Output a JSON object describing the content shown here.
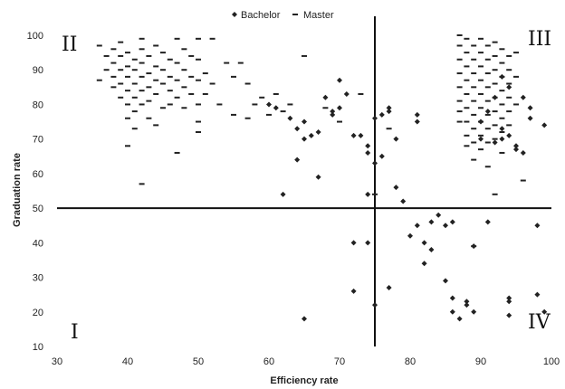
{
  "chart_data": {
    "type": "scatter",
    "title": "",
    "xlabel": "Efficiency rate",
    "ylabel": "Graduation rate",
    "xlim": [
      30,
      100
    ],
    "ylim": [
      10,
      100
    ],
    "xticks": [
      30,
      40,
      50,
      60,
      70,
      80,
      90,
      100
    ],
    "yticks": [
      10,
      20,
      30,
      40,
      50,
      60,
      70,
      80,
      90,
      100
    ],
    "grid": false,
    "legend_position": "top-center",
    "reference_lines": {
      "x": 75,
      "y": 50
    },
    "quadrant_labels": [
      {
        "label": "I",
        "quadrant": "bottom-left"
      },
      {
        "label": "II",
        "quadrant": "top-left"
      },
      {
        "label": "III",
        "quadrant": "top-right"
      },
      {
        "label": "IV",
        "quadrant": "bottom-right"
      }
    ],
    "series": [
      {
        "name": "Bachelor",
        "marker": "diamond",
        "color": "#222222",
        "points": [
          [
            60,
            80
          ],
          [
            61,
            79
          ],
          [
            62,
            54
          ],
          [
            63,
            76
          ],
          [
            64,
            73
          ],
          [
            64,
            64
          ],
          [
            65,
            75
          ],
          [
            65,
            70
          ],
          [
            66,
            71
          ],
          [
            67,
            72
          ],
          [
            67,
            59
          ],
          [
            68,
            82
          ],
          [
            69,
            78
          ],
          [
            69,
            77
          ],
          [
            70,
            87
          ],
          [
            70,
            79
          ],
          [
            71,
            83
          ],
          [
            72,
            71
          ],
          [
            73,
            71
          ],
          [
            74,
            68
          ],
          [
            74,
            66
          ],
          [
            74,
            54
          ],
          [
            75,
            76
          ],
          [
            75,
            63
          ],
          [
            76,
            77
          ],
          [
            76,
            65
          ],
          [
            77,
            79
          ],
          [
            77,
            78
          ],
          [
            78,
            70
          ],
          [
            78,
            56
          ],
          [
            79,
            52
          ],
          [
            80,
            42
          ],
          [
            81,
            45
          ],
          [
            81,
            77
          ],
          [
            81,
            75
          ],
          [
            82,
            40
          ],
          [
            83,
            46
          ],
          [
            84,
            48
          ],
          [
            82,
            34
          ],
          [
            83,
            38
          ],
          [
            85,
            45
          ],
          [
            86,
            46
          ],
          [
            85,
            29
          ],
          [
            86,
            24
          ],
          [
            86,
            20
          ],
          [
            87,
            18
          ],
          [
            88,
            23
          ],
          [
            88,
            22
          ],
          [
            89,
            20
          ],
          [
            89,
            39
          ],
          [
            90,
            70
          ],
          [
            91,
            46
          ],
          [
            92,
            69
          ],
          [
            93,
            70
          ],
          [
            94,
            24
          ],
          [
            94,
            19
          ],
          [
            94,
            23
          ],
          [
            95,
            68
          ],
          [
            95,
            67
          ],
          [
            96,
            66
          ],
          [
            96,
            82
          ],
          [
            97,
            79
          ],
          [
            97,
            76
          ],
          [
            98,
            45
          ],
          [
            98,
            25
          ],
          [
            99,
            74
          ],
          [
            99,
            20
          ],
          [
            75,
            22
          ],
          [
            72,
            40
          ],
          [
            74,
            40
          ],
          [
            72,
            26
          ],
          [
            77,
            27
          ],
          [
            65,
            18
          ],
          [
            93,
            88
          ],
          [
            94,
            85
          ],
          [
            92,
            82
          ],
          [
            91,
            78
          ],
          [
            90,
            75
          ],
          [
            93,
            73
          ],
          [
            94,
            71
          ]
        ]
      },
      {
        "name": "Master",
        "marker": "dash",
        "color": "#222222",
        "points": [
          [
            36,
            97
          ],
          [
            37,
            94
          ],
          [
            37,
            90
          ],
          [
            38,
            96
          ],
          [
            38,
            92
          ],
          [
            38,
            88
          ],
          [
            38,
            85
          ],
          [
            39,
            98
          ],
          [
            39,
            94
          ],
          [
            39,
            90
          ],
          [
            39,
            86
          ],
          [
            39,
            82
          ],
          [
            40,
            95
          ],
          [
            40,
            91
          ],
          [
            40,
            88
          ],
          [
            40,
            84
          ],
          [
            40,
            80
          ],
          [
            40,
            76
          ],
          [
            40,
            68
          ],
          [
            41,
            93
          ],
          [
            41,
            90
          ],
          [
            41,
            86
          ],
          [
            41,
            82
          ],
          [
            41,
            78
          ],
          [
            41,
            73
          ],
          [
            42,
            99
          ],
          [
            42,
            96
          ],
          [
            42,
            92
          ],
          [
            42,
            88
          ],
          [
            42,
            84
          ],
          [
            42,
            80
          ],
          [
            42,
            57
          ],
          [
            43,
            94
          ],
          [
            43,
            89
          ],
          [
            43,
            85
          ],
          [
            43,
            81
          ],
          [
            43,
            76
          ],
          [
            44,
            97
          ],
          [
            44,
            91
          ],
          [
            44,
            87
          ],
          [
            44,
            83
          ],
          [
            44,
            74
          ],
          [
            45,
            95
          ],
          [
            45,
            90
          ],
          [
            45,
            86
          ],
          [
            45,
            79
          ],
          [
            46,
            93
          ],
          [
            46,
            88
          ],
          [
            46,
            84
          ],
          [
            46,
            80
          ],
          [
            47,
            99
          ],
          [
            47,
            92
          ],
          [
            47,
            87
          ],
          [
            47,
            82
          ],
          [
            47,
            66
          ],
          [
            48,
            96
          ],
          [
            48,
            90
          ],
          [
            48,
            85
          ],
          [
            48,
            79
          ],
          [
            49,
            94
          ],
          [
            49,
            88
          ],
          [
            49,
            83
          ],
          [
            50,
            99
          ],
          [
            50,
            93
          ],
          [
            50,
            87
          ],
          [
            50,
            80
          ],
          [
            50,
            75
          ],
          [
            50,
            72
          ],
          [
            51,
            89
          ],
          [
            51,
            83
          ],
          [
            52,
            99
          ],
          [
            52,
            86
          ],
          [
            53,
            80
          ],
          [
            54,
            92
          ],
          [
            55,
            88
          ],
          [
            55,
            77
          ],
          [
            56,
            92
          ],
          [
            57,
            86
          ],
          [
            57,
            76
          ],
          [
            58,
            80
          ],
          [
            59,
            82
          ],
          [
            60,
            77
          ],
          [
            61,
            83
          ],
          [
            62,
            78
          ],
          [
            63,
            80
          ],
          [
            65,
            94
          ],
          [
            68,
            79
          ],
          [
            70,
            75
          ],
          [
            73,
            83
          ],
          [
            36,
            87
          ],
          [
            87,
            100
          ],
          [
            87,
            97
          ],
          [
            87,
            93
          ],
          [
            87,
            89
          ],
          [
            87,
            85
          ],
          [
            87,
            81
          ],
          [
            87,
            78
          ],
          [
            87,
            75
          ],
          [
            88,
            99
          ],
          [
            88,
            95
          ],
          [
            88,
            91
          ],
          [
            88,
            87
          ],
          [
            88,
            83
          ],
          [
            88,
            79
          ],
          [
            88,
            75
          ],
          [
            88,
            71
          ],
          [
            88,
            68
          ],
          [
            89,
            97
          ],
          [
            89,
            93
          ],
          [
            89,
            89
          ],
          [
            89,
            85
          ],
          [
            89,
            81
          ],
          [
            89,
            77
          ],
          [
            89,
            73
          ],
          [
            89,
            69
          ],
          [
            89,
            64
          ],
          [
            90,
            99
          ],
          [
            90,
            95
          ],
          [
            90,
            91
          ],
          [
            90,
            87
          ],
          [
            90,
            83
          ],
          [
            90,
            79
          ],
          [
            90,
            75
          ],
          [
            90,
            71
          ],
          [
            90,
            67
          ],
          [
            91,
            97
          ],
          [
            91,
            93
          ],
          [
            91,
            89
          ],
          [
            91,
            85
          ],
          [
            91,
            81
          ],
          [
            91,
            77
          ],
          [
            91,
            73
          ],
          [
            91,
            69
          ],
          [
            91,
            62
          ],
          [
            92,
            98
          ],
          [
            92,
            94
          ],
          [
            92,
            90
          ],
          [
            92,
            86
          ],
          [
            92,
            82
          ],
          [
            92,
            78
          ],
          [
            92,
            74
          ],
          [
            92,
            70
          ],
          [
            92,
            54
          ],
          [
            93,
            96
          ],
          [
            93,
            92
          ],
          [
            93,
            88
          ],
          [
            93,
            84
          ],
          [
            93,
            80
          ],
          [
            93,
            76
          ],
          [
            93,
            72
          ],
          [
            93,
            66
          ],
          [
            94,
            94
          ],
          [
            94,
            90
          ],
          [
            94,
            86
          ],
          [
            94,
            82
          ],
          [
            94,
            78
          ],
          [
            94,
            74
          ],
          [
            95,
            95
          ],
          [
            95,
            88
          ],
          [
            95,
            80
          ],
          [
            96,
            58
          ],
          [
            77,
            73
          ],
          [
            75,
            54
          ],
          [
            89,
            39
          ]
        ]
      }
    ]
  }
}
